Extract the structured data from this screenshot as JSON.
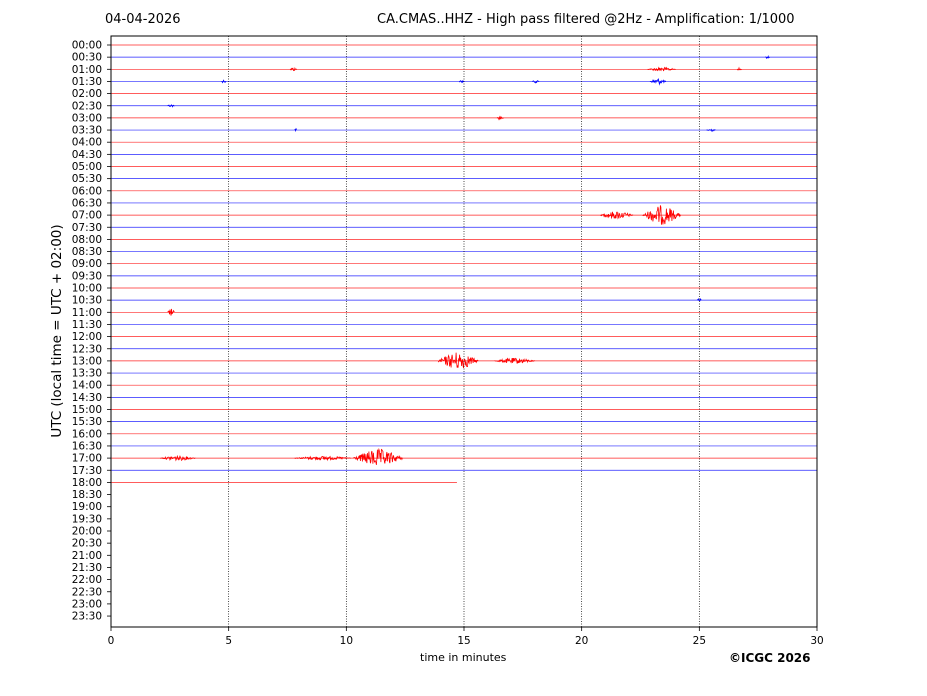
{
  "header": {
    "date": "04-04-2026",
    "title": "CA.CMAS..HHZ - High pass filtered @2Hz - Amplification: 1/1000"
  },
  "copyright": "©ICGC 2026",
  "colors": {
    "even_trace": "#ff0000",
    "odd_trace": "#0000ff",
    "axis": "#000000"
  },
  "chart_data": {
    "type": "line",
    "title": "CA.CMAS..HHZ - High pass filtered @2Hz - Amplification: 1/1000",
    "xlabel": "time in minutes",
    "ylabel": "UTC (local time = UTC + 02:00)",
    "xlim": [
      0,
      30
    ],
    "x_ticks": [
      "0",
      "5",
      "10",
      "15",
      "20",
      "25",
      "30"
    ],
    "vertical_gridlines_at": [
      5,
      10,
      15,
      20,
      25
    ],
    "grid_style": "dotted",
    "trace_colors_alternate": [
      "red",
      "blue"
    ],
    "rows": [
      "00:00",
      "00:30",
      "01:00",
      "01:30",
      "02:00",
      "02:30",
      "03:00",
      "03:30",
      "04:00",
      "04:30",
      "05:00",
      "05:30",
      "06:00",
      "06:30",
      "07:00",
      "07:30",
      "08:00",
      "08:30",
      "09:00",
      "09:30",
      "10:00",
      "10:30",
      "11:00",
      "11:30",
      "12:00",
      "12:30",
      "13:00",
      "13:30",
      "14:00",
      "14:30",
      "15:00",
      "15:30",
      "16:00",
      "16:30",
      "17:00",
      "17:30",
      "18:00",
      "18:30",
      "19:00",
      "19:30",
      "20:00",
      "20:30",
      "21:00",
      "21:30",
      "22:00",
      "22:30",
      "23:00",
      "23:30"
    ],
    "recorded_rows": 37,
    "last_row_end_minute": 14.7,
    "events": [
      {
        "row": "00:30",
        "start": 27.8,
        "end": 28.0,
        "amplitude": 1.5
      },
      {
        "row": "01:00",
        "start": 7.6,
        "end": 7.9,
        "amplitude": 2
      },
      {
        "row": "01:00",
        "start": 22.8,
        "end": 24.0,
        "amplitude": 2
      },
      {
        "row": "01:00",
        "start": 26.6,
        "end": 26.8,
        "amplitude": 1.5
      },
      {
        "row": "01:30",
        "start": 4.7,
        "end": 4.9,
        "amplitude": 2
      },
      {
        "row": "01:30",
        "start": 14.8,
        "end": 15.0,
        "amplitude": 1.5
      },
      {
        "row": "01:30",
        "start": 17.9,
        "end": 18.2,
        "amplitude": 1.5
      },
      {
        "row": "01:30",
        "start": 22.9,
        "end": 23.6,
        "amplitude": 3
      },
      {
        "row": "02:30",
        "start": 2.4,
        "end": 2.7,
        "amplitude": 1.5
      },
      {
        "row": "03:00",
        "start": 16.4,
        "end": 16.7,
        "amplitude": 2
      },
      {
        "row": "03:30",
        "start": 7.8,
        "end": 7.9,
        "amplitude": 1.5
      },
      {
        "row": "03:30",
        "start": 25.3,
        "end": 25.7,
        "amplitude": 1.5
      },
      {
        "row": "07:00",
        "start": 20.8,
        "end": 22.2,
        "amplitude": 4
      },
      {
        "row": "07:00",
        "start": 22.6,
        "end": 24.2,
        "amplitude": 10
      },
      {
        "row": "10:30",
        "start": 24.9,
        "end": 25.1,
        "amplitude": 2
      },
      {
        "row": "11:00",
        "start": 2.4,
        "end": 2.7,
        "amplitude": 4
      },
      {
        "row": "13:00",
        "start": 13.9,
        "end": 15.6,
        "amplitude": 9
      },
      {
        "row": "13:00",
        "start": 16.3,
        "end": 18.0,
        "amplitude": 3
      },
      {
        "row": "17:00",
        "start": 2.1,
        "end": 3.6,
        "amplitude": 2.5
      },
      {
        "row": "17:00",
        "start": 7.8,
        "end": 10.2,
        "amplitude": 2
      },
      {
        "row": "17:00",
        "start": 10.3,
        "end": 12.4,
        "amplitude": 9
      }
    ]
  }
}
